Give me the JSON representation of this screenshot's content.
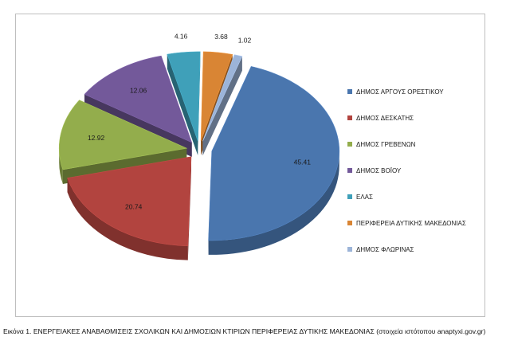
{
  "chart_data": {
    "type": "pie",
    "style": "3d-exploded",
    "categories": [
      "ΔΗΜΟΣ ΑΡΓΟΥΣ ΟΡΕΣΤΙΚΟΥ",
      "ΔΗΜΟΣ ΔΕΣΚΑΤΗΣ",
      "ΔΗΜΟΣ ΓΡΕΒΕΝΩΝ",
      "ΔΗΜΟΣ ΒΟΪΟΥ",
      "ΕΛΑΣ",
      "ΠΕΡΙΦΕΡΕΙΑ ΔΥΤΙΚΗΣ ΜΑΚΕΔΟΝΙΑΣ",
      "ΔΗΜΟΣ ΦΛΩΡΙΝΑΣ"
    ],
    "values": [
      45.41,
      20.74,
      12.92,
      12.06,
      4.16,
      3.68,
      1.02
    ],
    "value_labels": [
      "45.41",
      "20.74",
      "12.92",
      "12.06",
      "4.16",
      "3.68",
      "1.02"
    ],
    "colors": [
      "#4a76ae",
      "#b2443f",
      "#93ad4c",
      "#73599a",
      "#3fa0b9",
      "#d98534",
      "#9cb4d8"
    ],
    "legend_position": "right",
    "title": ""
  },
  "caption": "Εικόνα 1. ΕΝΕΡΓΕΙΑΚΕΣ ΑΝΑΒΑΘΜΙΣΕΙΣ ΣΧΟΛΙΚΩΝ ΚΑΙ ΔΗΜΟΣΙΩΝ ΚΤΙΡΙΩΝ ΠΕΡΙΦΕΡΕΙΑΣ ΔΥΤΙΚΗΣ ΜΑΚΕΔΟΝΙΑΣ (στοιχεία ιστότοπου anaptyxi.gov.gr)"
}
